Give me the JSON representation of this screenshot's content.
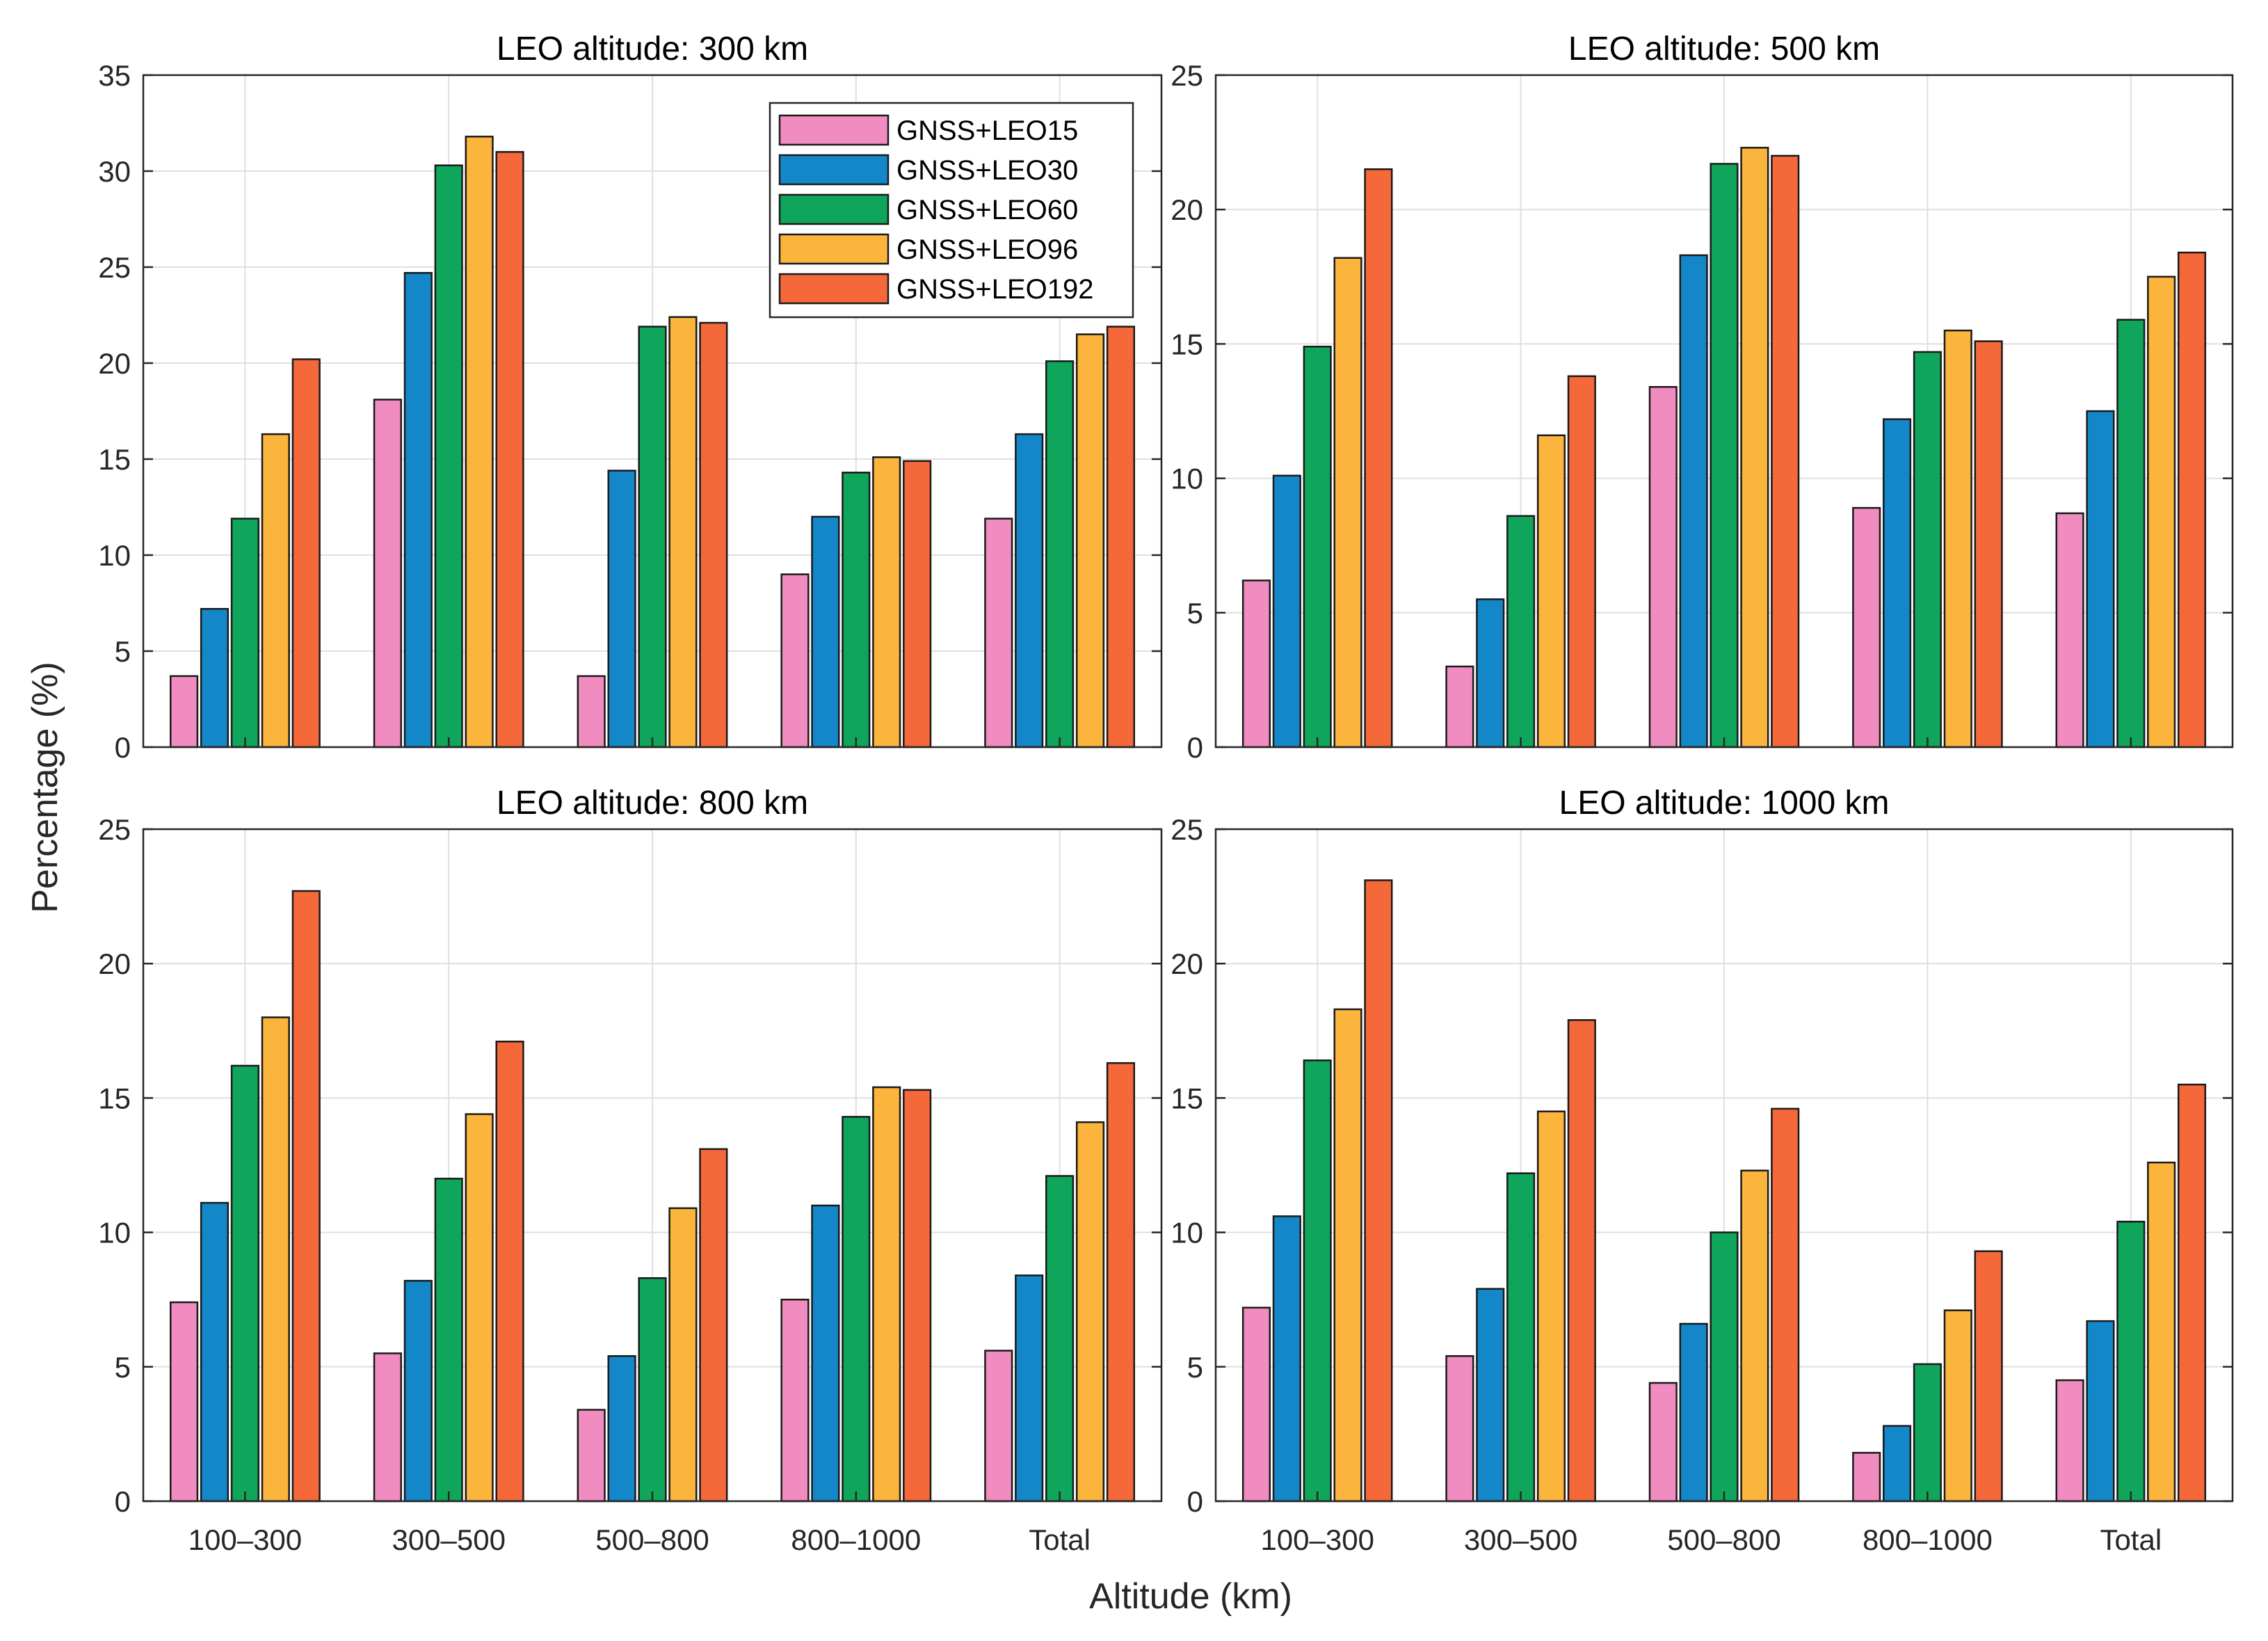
{
  "figure": {
    "ylabel": "Percentage (%)",
    "xlabel": "Altitude (km)"
  },
  "colors": {
    "GNSS+LEO15": "#f08cbf",
    "GNSS+LEO30": "#1487c9",
    "GNSS+LEO60": "#0fa55a",
    "GNSS+LEO96": "#fbb43c",
    "GNSS+LEO192": "#f4683a"
  },
  "chart_data": [
    {
      "type": "bar",
      "title": "LEO altitude: 300 km",
      "categories": [
        "100–300",
        "300–500",
        "500–800",
        "800–1000",
        "Total"
      ],
      "ylim": [
        0,
        35
      ],
      "yticks": [
        0,
        5,
        10,
        15,
        20,
        25,
        30,
        35
      ],
      "grid": true,
      "legend_position": "top-right",
      "series": [
        {
          "name": "GNSS+LEO15",
          "values": [
            3.7,
            18.1,
            3.7,
            9.0,
            11.9
          ]
        },
        {
          "name": "GNSS+LEO30",
          "values": [
            7.2,
            24.7,
            14.4,
            12.0,
            16.3
          ]
        },
        {
          "name": "GNSS+LEO60",
          "values": [
            11.9,
            30.3,
            21.9,
            14.3,
            20.1
          ]
        },
        {
          "name": "GNSS+LEO96",
          "values": [
            16.3,
            31.8,
            22.4,
            15.1,
            21.5
          ]
        },
        {
          "name": "GNSS+LEO192",
          "values": [
            20.2,
            31.0,
            22.1,
            14.9,
            21.9
          ]
        }
      ]
    },
    {
      "type": "bar",
      "title": "LEO altitude: 500 km",
      "categories": [
        "100–300",
        "300–500",
        "500–800",
        "800–1000",
        "Total"
      ],
      "ylim": [
        0,
        25
      ],
      "yticks": [
        0,
        5,
        10,
        15,
        20,
        25
      ],
      "grid": true,
      "series": [
        {
          "name": "GNSS+LEO15",
          "values": [
            6.2,
            3.0,
            13.4,
            8.9,
            8.7
          ]
        },
        {
          "name": "GNSS+LEO30",
          "values": [
            10.1,
            5.5,
            18.3,
            12.2,
            12.5
          ]
        },
        {
          "name": "GNSS+LEO60",
          "values": [
            14.9,
            8.6,
            21.7,
            14.7,
            15.9
          ]
        },
        {
          "name": "GNSS+LEO96",
          "values": [
            18.2,
            11.6,
            22.3,
            15.5,
            17.5
          ]
        },
        {
          "name": "GNSS+LEO192",
          "values": [
            21.5,
            13.8,
            22.0,
            15.1,
            18.4
          ]
        }
      ]
    },
    {
      "type": "bar",
      "title": "LEO altitude: 800 km",
      "categories": [
        "100–300",
        "300–500",
        "500–800",
        "800–1000",
        "Total"
      ],
      "ylim": [
        0,
        25
      ],
      "yticks": [
        0,
        5,
        10,
        15,
        20,
        25
      ],
      "grid": true,
      "series": [
        {
          "name": "GNSS+LEO15",
          "values": [
            7.4,
            5.5,
            3.4,
            7.5,
            5.6
          ]
        },
        {
          "name": "GNSS+LEO30",
          "values": [
            11.1,
            8.2,
            5.4,
            11.0,
            8.4
          ]
        },
        {
          "name": "GNSS+LEO60",
          "values": [
            16.2,
            12.0,
            8.3,
            14.3,
            12.1
          ]
        },
        {
          "name": "GNSS+LEO96",
          "values": [
            18.0,
            14.4,
            10.9,
            15.4,
            14.1
          ]
        },
        {
          "name": "GNSS+LEO192",
          "values": [
            22.7,
            17.1,
            13.1,
            15.3,
            16.3
          ]
        }
      ]
    },
    {
      "type": "bar",
      "title": "LEO altitude: 1000 km",
      "categories": [
        "100–300",
        "300–500",
        "500–800",
        "800–1000",
        "Total"
      ],
      "ylim": [
        0,
        25
      ],
      "yticks": [
        0,
        5,
        10,
        15,
        20,
        25
      ],
      "grid": true,
      "series": [
        {
          "name": "GNSS+LEO15",
          "values": [
            7.2,
            5.4,
            4.4,
            1.8,
            4.5
          ]
        },
        {
          "name": "GNSS+LEO30",
          "values": [
            10.6,
            7.9,
            6.6,
            2.8,
            6.7
          ]
        },
        {
          "name": "GNSS+LEO60",
          "values": [
            16.4,
            12.2,
            10.0,
            5.1,
            10.4
          ]
        },
        {
          "name": "GNSS+LEO96",
          "values": [
            18.3,
            14.5,
            12.3,
            7.1,
            12.6
          ]
        },
        {
          "name": "GNSS+LEO192",
          "values": [
            23.1,
            17.9,
            14.6,
            9.3,
            15.5
          ]
        }
      ]
    }
  ]
}
